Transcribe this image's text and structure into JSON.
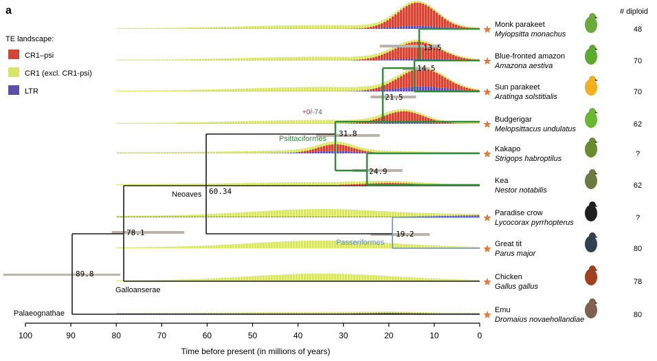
{
  "panel_label": "a",
  "diploid_header": "# diploid",
  "legend": {
    "title": "TE landscape:",
    "items": [
      {
        "label": "CR1–psi",
        "color": "#d04535"
      },
      {
        "label": "CR1 (excl. CR1-psi)",
        "color": "#d9e46a"
      },
      {
        "label": "LTR",
        "color": "#5b4fa8"
      }
    ]
  },
  "colors": {
    "tree": "#1a1a1a",
    "psittaciformes": "#2f8a3a",
    "passeriformes": "#6a8fc7",
    "ci_bar": "#bcb2ab",
    "star": "#e07a3a"
  },
  "axis": {
    "label": "Time before present (in millions of years)",
    "ticks": [
      "100",
      "90",
      "80",
      "70",
      "60",
      "50",
      "40",
      "30",
      "20",
      "10",
      "0"
    ],
    "min": 0,
    "max": 100
  },
  "taxa": [
    {
      "common": "Monk parakeet",
      "latin": "Myiopsitta monachus",
      "diploid": "48",
      "star": true,
      "bird_icon": "monk-parakeet-icon"
    },
    {
      "common": "Blue-fronted amazon",
      "latin": "Amazona aestiva",
      "diploid": "70",
      "star": true,
      "bird_icon": "amazon-parrot-icon"
    },
    {
      "common": "Sun parakeet",
      "latin": "Aratinga solstitialis",
      "diploid": "70",
      "star": true,
      "bird_icon": "sun-parakeet-icon"
    },
    {
      "common": "Budgerigar",
      "latin": "Melopsittacus undulatus",
      "diploid": "62",
      "star": true,
      "bird_icon": "budgerigar-icon"
    },
    {
      "common": "Kakapo",
      "latin": "Strigops habroptilus",
      "diploid": "?",
      "star": true,
      "bird_icon": "kakapo-icon"
    },
    {
      "common": "Kea",
      "latin": "Nestor notabilis",
      "diploid": "62",
      "star": false,
      "bird_icon": "kea-icon"
    },
    {
      "common": "Paradise crow",
      "latin": "Lycocorax pyrrhopterus",
      "diploid": "?",
      "star": true,
      "bird_icon": "paradise-crow-icon"
    },
    {
      "common": "Great tit",
      "latin": "Parus major",
      "diploid": "80",
      "star": true,
      "bird_icon": "great-tit-icon"
    },
    {
      "common": "Chicken",
      "latin": "Gallus gallus",
      "diploid": "78",
      "star": true,
      "bird_icon": "chicken-icon"
    },
    {
      "common": "Emu",
      "latin": "Dromaius novaehollandiae",
      "diploid": "80",
      "star": true,
      "bird_icon": "emu-icon"
    }
  ],
  "nodes": [
    {
      "label": "89.8",
      "age": 89.8
    },
    {
      "label": "78.1",
      "age": 78.1
    },
    {
      "label": "60.34",
      "age": 60.34
    },
    {
      "label": "31.8",
      "age": 31.8
    },
    {
      "label": "24.9",
      "age": 24.9
    },
    {
      "label": "21.5",
      "age": 21.5
    },
    {
      "label": "19.2",
      "age": 19.2
    },
    {
      "label": "14.5",
      "age": 14.5
    },
    {
      "label": "13.5",
      "age": 13.5
    }
  ],
  "clade_labels": {
    "palaeognathae": "Palaeognathae",
    "galloanserae": "Galloanserae",
    "neoaves": "Neoaves",
    "psittaciformes": "Psittaciformes",
    "passeriformes": "Passeriformes"
  },
  "gene_change": {
    "gain": "+0",
    "sep": "/",
    "loss": "-74"
  }
}
